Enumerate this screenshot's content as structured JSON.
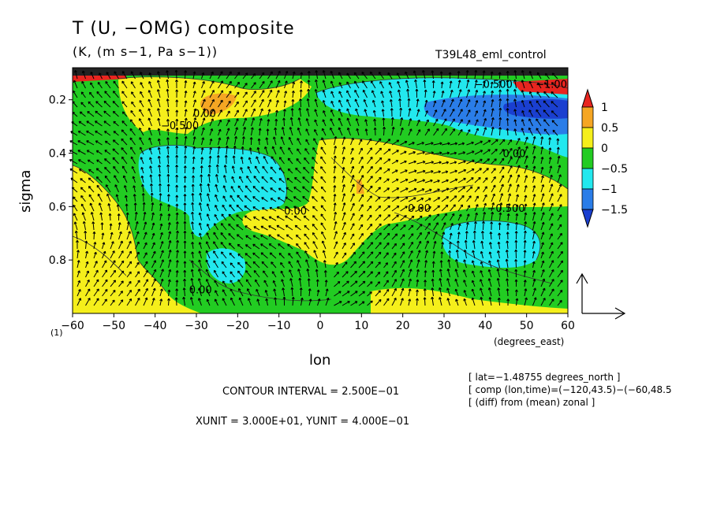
{
  "chart_data": {
    "type": "heatmap",
    "title": "T (U, −OMG) composite",
    "subtitle": "(K, (m s−1, Pa s−1))",
    "run_name": "T39L48_eml_control",
    "xlabel": "lon",
    "x_unit_label": "(degrees_east)",
    "ylabel": "sigma",
    "y_marker": "(1)",
    "xlim": [
      -60,
      60
    ],
    "ylim": [
      1.0,
      0.08
    ],
    "x_ticks": [
      "−60",
      "−50",
      "−40",
      "−30",
      "−20",
      "−10",
      "0",
      "10",
      "20",
      "30",
      "40",
      "50",
      "60"
    ],
    "x_tick_values": [
      -60,
      -50,
      -40,
      -30,
      -20,
      -10,
      0,
      10,
      20,
      30,
      40,
      50,
      60
    ],
    "y_ticks": [
      "0.2",
      "0.4",
      "0.6",
      "0.8"
    ],
    "y_tick_values": [
      0.2,
      0.4,
      0.6,
      0.8
    ],
    "colorbar": {
      "labels": [
        "1",
        "0.5",
        "0",
        "−0.5",
        "−1",
        "−1.5"
      ],
      "levels": [
        1,
        0.5,
        0,
        -0.5,
        -1,
        -1.5
      ],
      "colors": [
        "#e8251f",
        "#f5a623",
        "#f5ef1b",
        "#22cc22",
        "#22e8ee",
        "#2a7de8",
        "#1a3fd0"
      ]
    },
    "contour_labels": [
      {
        "text": "0.00",
        "lon": -28,
        "sigma": 0.265
      },
      {
        "text": "−0.500",
        "lon": -34,
        "sigma": 0.31
      },
      {
        "text": "0.00",
        "lon": -6,
        "sigma": 0.63
      },
      {
        "text": "0.00",
        "lon": 24,
        "sigma": 0.62
      },
      {
        "text": "0.00",
        "lon": 47,
        "sigma": 0.415
      },
      {
        "text": "−0.500",
        "lon": 45,
        "sigma": 0.62
      },
      {
        "text": "0.00",
        "lon": -29,
        "sigma": 0.925
      },
      {
        "text": "−0.500",
        "lon": 42,
        "sigma": 0.155
      },
      {
        "text": "−1.00",
        "lon": 56,
        "sigma": 0.155
      }
    ],
    "regions": [
      {
        "name": "warm-upper-left",
        "value": 0.25
      },
      {
        "name": "cold-upper-right",
        "value": -1.25
      },
      {
        "name": "warm-central",
        "value": 0.25
      },
      {
        "name": "cold-left-mid",
        "value": -0.75
      },
      {
        "name": "cold-right-low",
        "value": -0.75
      },
      {
        "name": "warm-left-edge",
        "value": 0.25
      }
    ],
    "vector_reference": {
      "xunit_text": "XUNIT = 3.000E+01, YUNIT = 4.000E−01",
      "xunit": 30.0,
      "yunit": 0.4
    },
    "contour_interval_text": "CONTOUR INTERVAL = 2.500E−01",
    "contour_interval": 0.25
  },
  "info_lines": [
    "[ lat=−1.48755 degrees_north ]",
    "[ comp (lon,time)=(−120,43.5)−(−60,48.5",
    "[ (diff) from (mean) zonal ]"
  ]
}
